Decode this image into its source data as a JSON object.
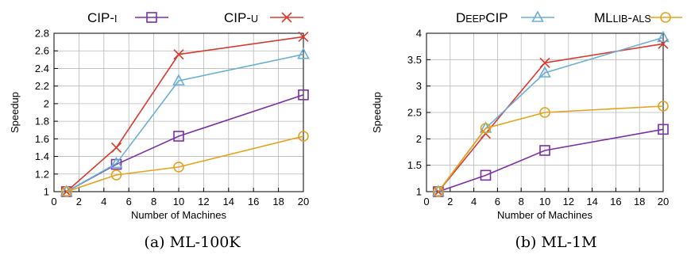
{
  "legend": [
    {
      "label": "CIP-I",
      "color": "#7b2fa8",
      "marker": "square"
    },
    {
      "label": "CIP-U",
      "color": "#d83a2e",
      "marker": "x"
    },
    {
      "label": "DEEPCIP",
      "color": "#6aafd6",
      "marker": "triangle"
    },
    {
      "label": "MLLIB-ALS",
      "color": "#e5a21b",
      "marker": "circle"
    }
  ],
  "chart_data": [
    {
      "type": "line",
      "caption": "(a) ML-100K",
      "xlabel": "Number of Machines",
      "ylabel": "Speedup",
      "xlim": [
        0,
        20
      ],
      "ylim": [
        1,
        2.8
      ],
      "xticks": [
        0,
        2,
        4,
        6,
        8,
        10,
        12,
        14,
        16,
        18,
        20
      ],
      "yticks": [
        1,
        1.2,
        1.4,
        1.6,
        1.8,
        2,
        2.2,
        2.4,
        2.6,
        2.8
      ],
      "grid": true,
      "x": [
        1,
        5,
        10,
        20
      ],
      "series": [
        {
          "name": "CIP-I",
          "values": [
            1,
            1.31,
            1.63,
            2.1
          ]
        },
        {
          "name": "CIP-U",
          "values": [
            1,
            1.5,
            2.56,
            2.76
          ]
        },
        {
          "name": "DEEPCIP",
          "values": [
            1,
            1.32,
            2.26,
            2.56
          ]
        },
        {
          "name": "MLLIB-ALS",
          "values": [
            1,
            1.19,
            1.28,
            1.63
          ]
        }
      ]
    },
    {
      "type": "line",
      "caption": "(b) ML-1M",
      "xlabel": "Number of Machines",
      "ylabel": "Speedup",
      "xlim": [
        0,
        20
      ],
      "ylim": [
        1,
        4
      ],
      "xticks": [
        0,
        2,
        4,
        6,
        8,
        10,
        12,
        14,
        16,
        18,
        20
      ],
      "yticks": [
        1,
        1.5,
        2,
        2.5,
        3,
        3.5,
        4
      ],
      "grid": true,
      "x": [
        1,
        5,
        10,
        20
      ],
      "series": [
        {
          "name": "CIP-I",
          "values": [
            1,
            1.31,
            1.78,
            2.18
          ]
        },
        {
          "name": "CIP-U",
          "values": [
            1,
            2.1,
            3.44,
            3.8
          ]
        },
        {
          "name": "DEEPCIP",
          "values": [
            1,
            2.2,
            3.25,
            3.92
          ]
        },
        {
          "name": "MLLIB-ALS",
          "values": [
            1,
            2.2,
            2.5,
            2.62
          ]
        }
      ]
    }
  ]
}
